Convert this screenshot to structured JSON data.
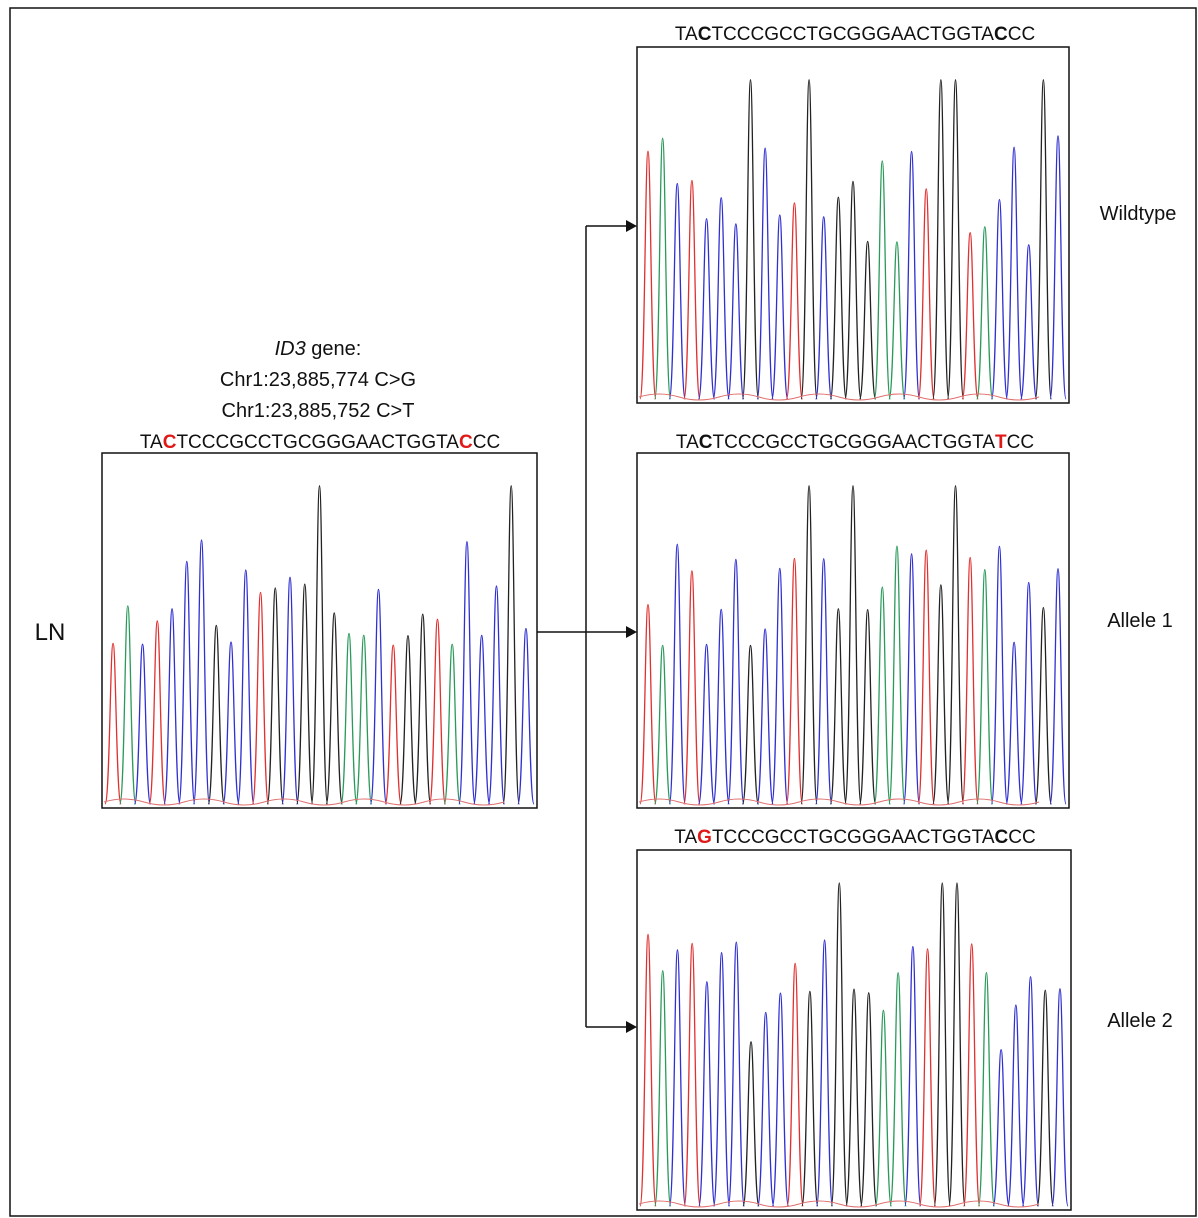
{
  "lymph_node": {
    "label": "LN",
    "gene": "ID3",
    "gene_suffix": " gene:",
    "variants": [
      "Chr1:23,885,774 C>G",
      "Chr1:23,885,752 C>T"
    ],
    "sequence": [
      "TA",
      "C",
      "TCCCGCCTGCGGGAACTGGTA",
      "C",
      "CC"
    ]
  },
  "panels": [
    {
      "label": "Wildtype",
      "sequence": [
        "TA",
        "C",
        "TCCCGCCTGCGGGAACTGGTA",
        "C",
        "CC"
      ]
    },
    {
      "label": "Allele 1",
      "sequence": [
        "TA",
        "C",
        "TCCCGCCTGCGGGAACTGGTA",
        "T",
        "CC"
      ]
    },
    {
      "label": "Allele 2",
      "sequence": [
        "TA",
        "G",
        "TCCCGCCTGCGGGAACTGGTA",
        "C",
        "CC"
      ]
    }
  ]
}
